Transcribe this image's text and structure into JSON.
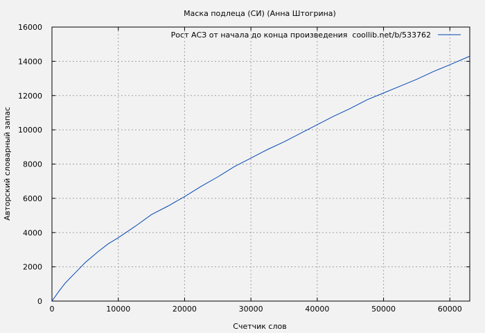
{
  "chart_data": {
    "type": "line",
    "title": "Маска подлеца (СИ) (Анна Штогрина)",
    "xlabel": "Счетчик слов",
    "ylabel": "Авторский словарный запас",
    "xlim": [
      0,
      63000
    ],
    "ylim": [
      0,
      16000
    ],
    "xticks": [
      0,
      10000,
      20000,
      30000,
      40000,
      50000,
      60000
    ],
    "yticks": [
      0,
      2000,
      4000,
      6000,
      8000,
      10000,
      12000,
      14000,
      16000
    ],
    "grid": true,
    "legend_position": "top-right",
    "series": [
      {
        "name": "Рост АСЗ от начала до конца произведения  coollib.net/b/533762",
        "color": "#0047b3",
        "x": [
          0,
          1000,
          2000,
          3500,
          5000,
          7000,
          8500,
          10000,
          12500,
          15000,
          17500,
          20000,
          22500,
          25000,
          27500,
          30000,
          32500,
          35000,
          37500,
          40000,
          42500,
          45000,
          47500,
          50000,
          52500,
          55000,
          57500,
          60000,
          63000
        ],
        "y": [
          0,
          550,
          1050,
          1650,
          2250,
          2900,
          3350,
          3700,
          4350,
          5050,
          5550,
          6100,
          6700,
          7250,
          7850,
          8350,
          8850,
          9300,
          9800,
          10300,
          10800,
          11250,
          11750,
          12150,
          12550,
          12950,
          13400,
          13800,
          14300
        ]
      }
    ]
  }
}
